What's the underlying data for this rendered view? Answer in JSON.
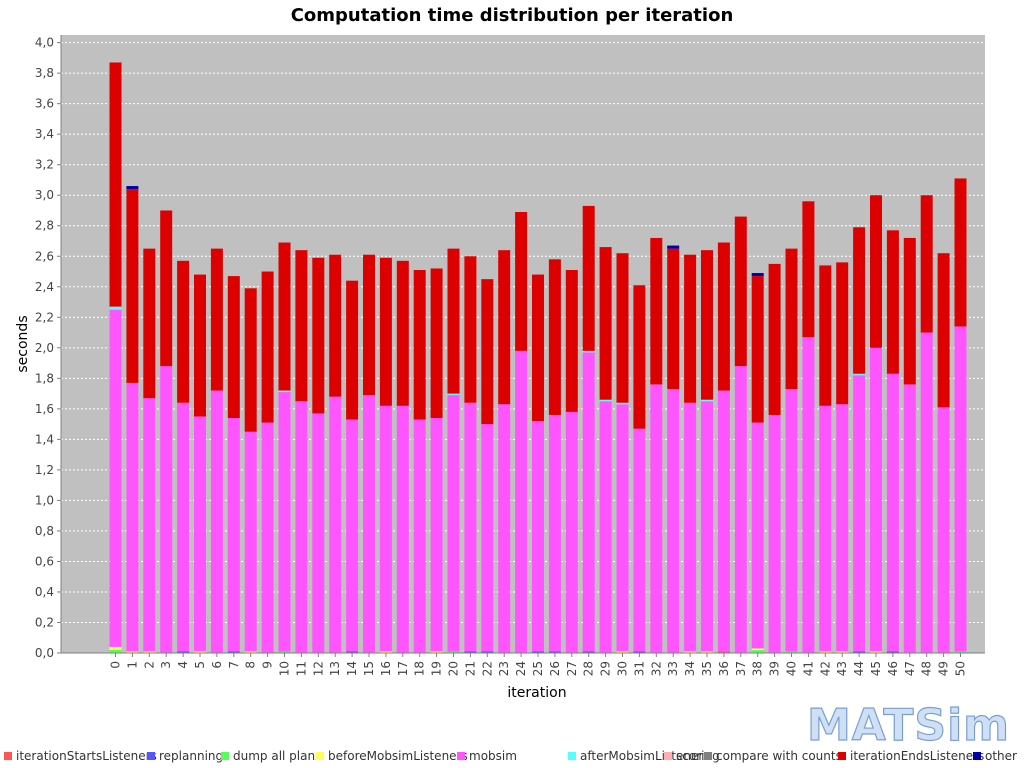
{
  "chart_data": {
    "type": "bar",
    "stacked": true,
    "title": "Computation time distribution per iteration",
    "xlabel": "iteration",
    "ylabel": "seconds",
    "ylim": [
      0,
      4.05
    ],
    "yticks": [
      "0,0",
      "0,2",
      "0,4",
      "0,6",
      "0,8",
      "1,0",
      "1,2",
      "1,4",
      "1,6",
      "1,8",
      "2,0",
      "2,2",
      "2,4",
      "2,6",
      "2,8",
      "3,0",
      "3,2",
      "3,4",
      "3,6",
      "3,8",
      "4,0"
    ],
    "grid": true,
    "legend_position": "bottom",
    "categories": [
      "0",
      "1",
      "2",
      "3",
      "4",
      "5",
      "6",
      "7",
      "8",
      "9",
      "10",
      "11",
      "12",
      "13",
      "14",
      "15",
      "16",
      "17",
      "18",
      "19",
      "20",
      "21",
      "22",
      "23",
      "24",
      "25",
      "26",
      "27",
      "28",
      "29",
      "30",
      "31",
      "32",
      "33",
      "34",
      "35",
      "36",
      "37",
      "38",
      "39",
      "40",
      "41",
      "42",
      "43",
      "44",
      "45",
      "46",
      "47",
      "48",
      "49",
      "50"
    ],
    "series": [
      {
        "name": "iterationStartsListeners",
        "color": "#ff5555",
        "values": [
          0,
          0,
          0,
          0,
          0,
          0,
          0,
          0,
          0,
          0,
          0,
          0,
          0,
          0,
          0,
          0,
          0,
          0,
          0,
          0,
          0,
          0,
          0,
          0,
          0,
          0,
          0,
          0,
          0,
          0,
          0,
          0,
          0,
          0,
          0,
          0,
          0.01,
          0,
          0,
          0,
          0,
          0,
          0,
          0,
          0,
          0,
          0,
          0,
          0,
          0,
          0
        ]
      },
      {
        "name": "replanning",
        "color": "#5555ff",
        "values": [
          0,
          0,
          0,
          0,
          0.01,
          0,
          0,
          0.01,
          0,
          0,
          0,
          0,
          0,
          0,
          0.01,
          0,
          0,
          0,
          0,
          0,
          0,
          0.01,
          0.01,
          0,
          0,
          0.01,
          0.01,
          0,
          0.01,
          0,
          0,
          0.01,
          0,
          0,
          0,
          0,
          0,
          0,
          0,
          0,
          0,
          0,
          0,
          0,
          0.01,
          0,
          0.01,
          0,
          0,
          0,
          0
        ]
      },
      {
        "name": "dump all plans",
        "color": "#55ff55",
        "values": [
          0.02,
          0,
          0,
          0,
          0,
          0,
          0,
          0,
          0,
          0,
          0.01,
          0,
          0,
          0,
          0,
          0,
          0,
          0,
          0,
          0,
          0.01,
          0,
          0,
          0,
          0,
          0,
          0,
          0,
          0,
          0,
          0,
          0,
          0,
          0,
          0,
          0,
          0,
          0,
          0.02,
          0,
          0.01,
          0,
          0,
          0,
          0,
          0,
          0,
          0,
          0,
          0,
          0.01
        ]
      },
      {
        "name": "beforeMobsimListeners",
        "color": "#ffff55",
        "values": [
          0.02,
          0.01,
          0.01,
          0,
          0,
          0.01,
          0,
          0,
          0.01,
          0,
          0,
          0,
          0,
          0,
          0,
          0,
          0.01,
          0,
          0,
          0.01,
          0,
          0,
          0,
          0,
          0,
          0,
          0,
          0,
          0,
          0,
          0.01,
          0,
          0,
          0,
          0.01,
          0.01,
          0,
          0,
          0.01,
          0,
          0,
          0,
          0.01,
          0.01,
          0,
          0.01,
          0,
          0,
          0,
          0,
          0
        ]
      },
      {
        "name": "mobsim",
        "color": "#ff55ff",
        "values": [
          2.21,
          1.76,
          1.66,
          1.88,
          1.63,
          1.54,
          1.72,
          1.53,
          1.44,
          1.51,
          1.7,
          1.65,
          1.57,
          1.68,
          1.52,
          1.69,
          1.61,
          1.62,
          1.53,
          1.53,
          1.68,
          1.63,
          1.49,
          1.63,
          1.98,
          1.51,
          1.55,
          1.58,
          1.96,
          1.65,
          1.62,
          1.46,
          1.76,
          1.73,
          1.63,
          1.64,
          1.71,
          1.88,
          1.48,
          1.56,
          1.72,
          2.07,
          1.61,
          1.62,
          1.81,
          1.99,
          1.82,
          1.76,
          2.1,
          1.61,
          2.13
        ]
      },
      {
        "name": "afterMobsimListeners",
        "color": "#55ffff",
        "values": [
          0.02,
          0,
          0,
          0,
          0,
          0,
          0,
          0,
          0,
          0,
          0.01,
          0,
          0,
          0,
          0,
          0,
          0,
          0,
          0,
          0,
          0.01,
          0,
          0,
          0,
          0,
          0,
          0,
          0,
          0.01,
          0.01,
          0.01,
          0,
          0,
          0,
          0,
          0.01,
          0,
          0,
          0,
          0,
          0,
          0,
          0,
          0,
          0.01,
          0,
          0,
          0,
          0,
          0,
          0
        ]
      },
      {
        "name": "scoring",
        "color": "#ffafaf",
        "values": [
          0,
          0,
          0,
          0,
          0,
          0,
          0,
          0,
          0,
          0,
          0,
          0,
          0,
          0,
          0,
          0,
          0,
          0,
          0,
          0,
          0,
          0,
          0,
          0,
          0,
          0,
          0,
          0,
          0,
          0,
          0,
          0,
          0,
          0,
          0,
          0,
          0,
          0,
          0,
          0,
          0,
          0,
          0,
          0,
          0,
          0,
          0,
          0,
          0,
          0,
          0
        ]
      },
      {
        "name": "compare with counts",
        "color": "#808080",
        "values": [
          0,
          0,
          0,
          0,
          0,
          0,
          0,
          0,
          0,
          0,
          0,
          0,
          0,
          0,
          0,
          0,
          0,
          0,
          0,
          0,
          0,
          0,
          0,
          0,
          0,
          0,
          0,
          0,
          0,
          0,
          0,
          0,
          0,
          0,
          0,
          0,
          0,
          0,
          0,
          0,
          0,
          0,
          0,
          0,
          0,
          0,
          0,
          0,
          0,
          0,
          0
        ]
      },
      {
        "name": "iterationEndsListeners",
        "color": "#dd0000",
        "values": [
          1.6,
          1.27,
          0.98,
          1.02,
          0.93,
          0.93,
          0.93,
          0.93,
          0.94,
          0.99,
          0.97,
          0.99,
          1.02,
          0.93,
          0.91,
          0.92,
          0.97,
          0.95,
          0.98,
          0.98,
          0.95,
          0.96,
          0.95,
          1.01,
          0.91,
          0.96,
          1.02,
          0.93,
          0.95,
          1,
          0.98,
          0.94,
          0.96,
          0.92,
          0.97,
          0.98,
          0.97,
          0.98,
          0.96,
          0.99,
          0.92,
          0.89,
          0.92,
          0.93,
          0.96,
          1.0,
          0.94,
          0.96,
          0.9,
          1.01,
          0.97
        ]
      },
      {
        "name": "other",
        "color": "#0000aa",
        "values": [
          0,
          0.02,
          0,
          0,
          0,
          0,
          0,
          0,
          0,
          0,
          0,
          0,
          0,
          0,
          0,
          0,
          0,
          0,
          0,
          0,
          0,
          0,
          0,
          0,
          0,
          0,
          0,
          0,
          0,
          0,
          0,
          0,
          0,
          0.02,
          0,
          0,
          0,
          0,
          0.02,
          0,
          0,
          0,
          0,
          0,
          0,
          0,
          0,
          0,
          0,
          0,
          0
        ]
      }
    ]
  },
  "logo": {
    "text": "MATSim"
  }
}
